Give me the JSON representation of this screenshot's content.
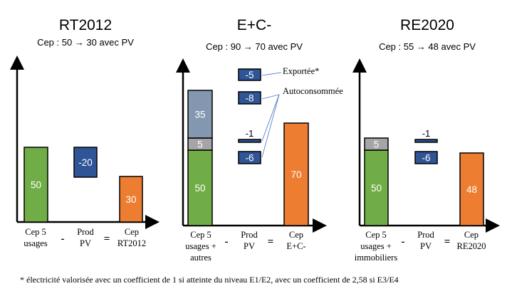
{
  "chart_data": {
    "type": "bar",
    "colors": {
      "cep_5_usages": "#70ad47",
      "other_usages": "#a5a5a5",
      "autres": "#8497b0",
      "pv": "#2f5597",
      "result": "#ed7d31"
    },
    "panels": [
      {
        "title": "RT2012",
        "subtitle": "Cep : 50 → 30 avec PV",
        "xlabels": [
          [
            "Cep 5",
            "usages"
          ],
          [
            "Prod",
            "PV"
          ],
          [
            "Cep",
            "RT2012"
          ]
        ],
        "operators": [
          "-",
          "="
        ],
        "bars": [
          {
            "label": "50",
            "value": 50,
            "color": "#70ad47"
          },
          {
            "label": "-20",
            "value": -20,
            "color": "#2f5597"
          },
          {
            "label": "30",
            "value": 30,
            "color": "#ed7d31"
          }
        ]
      },
      {
        "title": "E+C-",
        "subtitle": "Cep : 90 → 70 avec PV",
        "xlabels": [
          [
            "Cep 5",
            "usages +",
            "autres"
          ],
          [
            "Prod",
            "PV"
          ],
          [
            "Cep",
            "E+C-"
          ]
        ],
        "operators": [
          "-",
          "="
        ],
        "bars": [
          {
            "label": "50",
            "value": 50,
            "color": "#70ad47"
          },
          {
            "label": "5",
            "value": 5,
            "color": "#a5a5a5"
          },
          {
            "label": "35",
            "value": 35,
            "color": "#8497b0"
          },
          {
            "label": "-5",
            "value": -5,
            "color": "#2f5597"
          },
          {
            "label": "-8",
            "value": -8,
            "color": "#2f5597"
          },
          {
            "label": "-1",
            "value": -1,
            "color": "#2f5597"
          },
          {
            "label": "-6",
            "value": -6,
            "color": "#2f5597"
          },
          {
            "label": "70",
            "value": 70,
            "color": "#ed7d31"
          }
        ],
        "annotations": [
          "Exportée*",
          "Autoconsommée"
        ]
      },
      {
        "title": "RE2020",
        "subtitle": "Cep : 55 → 48 avec PV",
        "xlabels": [
          [
            "Cep 5",
            "usages +",
            "immobiliers"
          ],
          [
            "Prod",
            "PV"
          ],
          [
            "Cep",
            "RE2020"
          ]
        ],
        "operators": [
          "-",
          "="
        ],
        "bars": [
          {
            "label": "50",
            "value": 50,
            "color": "#70ad47"
          },
          {
            "label": "5",
            "value": 5,
            "color": "#a5a5a5"
          },
          {
            "label": "-1",
            "value": -1,
            "color": "#2f5597"
          },
          {
            "label": "-6",
            "value": -6,
            "color": "#2f5597"
          },
          {
            "label": "48",
            "value": 48,
            "color": "#ed7d31"
          }
        ]
      }
    ],
    "footnote": "* électricité valorisée avec un coefficient de 1 si atteinte du niveau E1/E2, avec un coefficient de 2,58 si E3/E4"
  }
}
